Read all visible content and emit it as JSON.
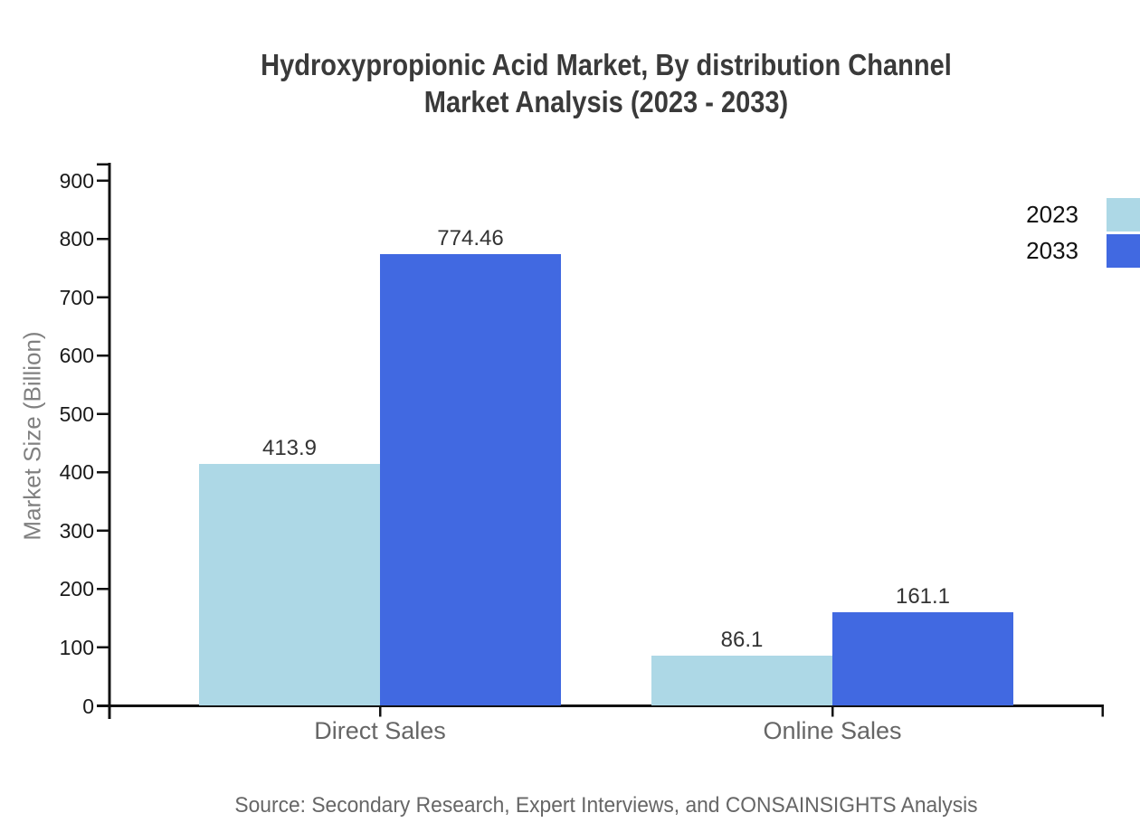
{
  "title": {
    "line1": "Hydroxypropionic Acid Market, By distribution Channel",
    "line2": "Market Analysis (2023 - 2033)"
  },
  "source": "Source: Secondary Research, Expert Interviews, and CONSAINSIGHTS Analysis",
  "chart_data": {
    "type": "bar",
    "title": "Hydroxypropionic Acid Market, By distribution Channel Market Analysis (2023 - 2033)",
    "categories": [
      "Direct Sales",
      "Online Sales"
    ],
    "series": [
      {
        "name": "2023",
        "color": "#ADD8E6",
        "values": [
          413.9,
          86.1
        ]
      },
      {
        "name": "2033",
        "color": "#4169E1",
        "values": [
          774.46,
          161.1
        ]
      }
    ],
    "xlabel": "",
    "ylabel": "Market Size (Billion)",
    "ylim": [
      0,
      900
    ],
    "yticks": [
      0,
      100,
      200,
      300,
      400,
      500,
      600,
      700,
      800,
      900
    ],
    "grid": false,
    "bar_value_labels": true,
    "legend_position": "top-right",
    "axis_color": "#111111"
  }
}
